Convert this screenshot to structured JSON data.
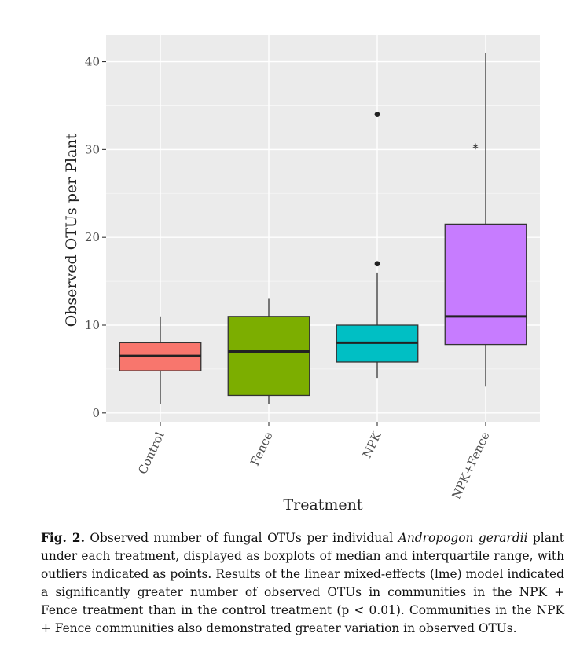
{
  "chart_data": {
    "type": "box",
    "ylabel": "Observed OTUs per Plant",
    "xlabel": "Treatment",
    "ylim": [
      -1,
      43
    ],
    "yticks": [
      0,
      10,
      20,
      30,
      40
    ],
    "grid": true,
    "background": "#ebebeb",
    "categories": [
      "Control",
      "Fence",
      "NPK",
      "NPK+Fence"
    ],
    "boxes": [
      {
        "name": "Control",
        "color": "#f8766d",
        "whisker_low": 1,
        "q1": 4.8,
        "median": 6.5,
        "q3": 8.0,
        "whisker_high": 11,
        "outliers": []
      },
      {
        "name": "Fence",
        "color": "#7cae00",
        "whisker_low": 1,
        "q1": 2.0,
        "median": 7.0,
        "q3": 11.0,
        "whisker_high": 13,
        "outliers": []
      },
      {
        "name": "NPK",
        "color": "#00bfc4",
        "whisker_low": 4,
        "q1": 5.8,
        "median": 8.0,
        "q3": 10.0,
        "whisker_high": 16,
        "outliers": [
          17,
          34
        ]
      },
      {
        "name": "NPK+Fence",
        "color": "#c77cff",
        "whisker_low": 3,
        "q1": 7.8,
        "median": 11.0,
        "q3": 21.5,
        "whisker_high": 41,
        "outliers": []
      }
    ],
    "annotations": [
      {
        "category": "NPK+Fence",
        "y": 30.3,
        "text": "*"
      }
    ]
  },
  "caption": {
    "label": "Fig. 2.",
    "text_before": " Observed number of fungal OTUs per individual ",
    "species": "Andropogon gerardii",
    "text_after": " plant under each treatment, displayed as boxplots of median and interquartile range, with outliers indicated as points. Results of the linear mixed-effects (lme) model indicated a significantly greater number of observed OTUs in communities in the NPK + Fence treatment than in the control treatment (p < 0.01). Communities in the NPK + Fence communities also demonstrated greater variation in observed OTUs."
  }
}
